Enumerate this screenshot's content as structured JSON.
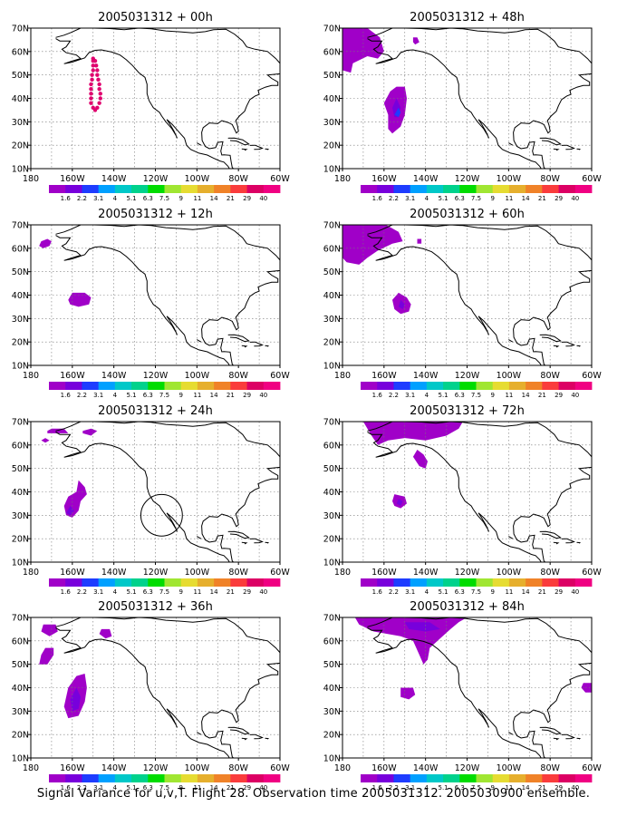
{
  "caption": "Signal Variance for u,v,T. Flight 28. Observation time 2005031312. 2005030900 ensemble.",
  "x_tick_labels": [
    "180",
    "160W",
    "140W",
    "120W",
    "100W",
    "80W",
    "60W"
  ],
  "y_tick_labels": [
    "10N",
    "20N",
    "30N",
    "40N",
    "50N",
    "60N",
    "70N"
  ],
  "colorbar": {
    "labels": [
      "1.6",
      "2.2",
      "3.1",
      "4",
      "5.1",
      "6.3",
      "7.5",
      "9",
      "11",
      "14",
      "21",
      "29",
      "40"
    ],
    "colors": [
      "#a000c8",
      "#7800dc",
      "#1e3cff",
      "#00a0ff",
      "#00c8c8",
      "#00d28c",
      "#00dc00",
      "#a0e632",
      "#e6dc32",
      "#e6af2d",
      "#f08228",
      "#fa3c3c",
      "#dc0064",
      "#f00082"
    ]
  },
  "chart_data": {
    "type": "map",
    "projection": "lat-lon",
    "lon_range": [
      -180,
      -60
    ],
    "lat_range": [
      10,
      70
    ],
    "grid": true,
    "fill_color": "#a000c8",
    "panels": [
      {
        "title": "2005031312 + 00h",
        "flight_track": [
          [
            -150,
            57
          ],
          [
            -149,
            56
          ],
          [
            -148.5,
            54
          ],
          [
            -148,
            52
          ],
          [
            -148,
            50
          ],
          [
            -147.5,
            48
          ],
          [
            -147,
            46
          ],
          [
            -147,
            44
          ],
          [
            -146.5,
            42
          ],
          [
            -146.5,
            40
          ],
          [
            -147,
            38
          ],
          [
            -148,
            36
          ],
          [
            -149,
            35
          ],
          [
            -150,
            36
          ],
          [
            -151,
            38
          ],
          [
            -151,
            40
          ],
          [
            -151,
            42
          ],
          [
            -151,
            44
          ],
          [
            -151,
            46
          ],
          [
            -150.5,
            48
          ],
          [
            -150.5,
            50
          ],
          [
            -150,
            52
          ],
          [
            -150,
            54
          ],
          [
            -150,
            56
          ]
        ],
        "regions": []
      },
      {
        "title": "2005031312 + 12h",
        "regions": [
          {
            "outline": [
              [
                -175,
                63
              ],
              [
                -172,
                64
              ],
              [
                -170,
                63
              ],
              [
                -171,
                61
              ],
              [
                -174,
                60
              ],
              [
                -176,
                61
              ]
            ],
            "value": 1.6
          },
          {
            "outline": [
              [
                -160,
                41
              ],
              [
                -154,
                41
              ],
              [
                -151,
                39
              ],
              [
                -152,
                36
              ],
              [
                -157,
                35
              ],
              [
                -161,
                36
              ],
              [
                -162,
                38
              ]
            ],
            "value": 1.6
          }
        ]
      },
      {
        "title": "2005031312 + 24h",
        "regions": [
          {
            "outline": [
              [
                -172,
                66
              ],
              [
                -170,
                67
              ],
              [
                -164,
                67
              ],
              [
                -162,
                65
              ],
              [
                -166,
                65
              ],
              [
                -172,
                65
              ]
            ],
            "value": 1.6
          },
          {
            "outline": [
              [
                -155,
                66
              ],
              [
                -151,
                67
              ],
              [
                -148,
                66
              ],
              [
                -151,
                64
              ],
              [
                -155,
                65
              ]
            ],
            "value": 1.6
          },
          {
            "outline": [
              [
                -173,
                63
              ],
              [
                -171,
                62
              ],
              [
                -173,
                61
              ],
              [
                -175,
                62
              ]
            ],
            "value": 1.6
          },
          {
            "outline": [
              [
                -157,
                45
              ],
              [
                -154,
                42
              ],
              [
                -153,
                39
              ],
              [
                -156,
                36
              ],
              [
                -157,
                32
              ],
              [
                -160,
                29
              ],
              [
                -163,
                30
              ],
              [
                -164,
                34
              ],
              [
                -162,
                38
              ],
              [
                -158,
                40
              ]
            ],
            "value": 1.6
          },
          {
            "outline": [
              [
                -161,
                34
              ],
              [
                -159,
                32
              ],
              [
                -161,
                30
              ],
              [
                -163,
                31
              ]
            ],
            "value": 2.2
          }
        ],
        "circle": {
          "center": [
            -117,
            30
          ],
          "radius_deg": 10
        }
      },
      {
        "title": "2005031312 + 36h",
        "regions": [
          {
            "outline": [
              [
                -174,
                67
              ],
              [
                -168,
                67
              ],
              [
                -167,
                64
              ],
              [
                -171,
                62
              ],
              [
                -175,
                64
              ]
            ],
            "value": 1.6
          },
          {
            "outline": [
              [
                -173,
                57
              ],
              [
                -169,
                57
              ],
              [
                -169,
                54
              ],
              [
                -172,
                50
              ],
              [
                -176,
                50
              ],
              [
                -175,
                54
              ]
            ],
            "value": 1.6
          },
          {
            "outline": [
              [
                -146,
                65
              ],
              [
                -142,
                65
              ],
              [
                -141,
                62
              ],
              [
                -144,
                61
              ],
              [
                -147,
                63
              ]
            ],
            "value": 1.6
          },
          {
            "outline": [
              [
                -154,
                46
              ],
              [
                -153,
                40
              ],
              [
                -154,
                34
              ],
              [
                -157,
                28
              ],
              [
                -162,
                27
              ],
              [
                -164,
                32
              ],
              [
                -162,
                40
              ],
              [
                -158,
                45
              ]
            ],
            "value": 1.6
          },
          {
            "outline": [
              [
                -158,
                40
              ],
              [
                -156,
                36
              ],
              [
                -157,
                31
              ],
              [
                -160,
                30
              ],
              [
                -161,
                35
              ]
            ],
            "value": 2.2
          }
        ]
      },
      {
        "title": "2005031312 + 48h",
        "regions": [
          {
            "outline": [
              [
                -180,
                70
              ],
              [
                -168,
                70
              ],
              [
                -162,
                66
              ],
              [
                -160,
                60
              ],
              [
                -163,
                57
              ],
              [
                -168,
                58
              ],
              [
                -175,
                55
              ],
              [
                -176,
                51
              ],
              [
                -180,
                52
              ]
            ],
            "value": 1.6
          },
          {
            "outline": [
              [
                -146,
                66
              ],
              [
                -144,
                66
              ],
              [
                -143,
                64
              ],
              [
                -145,
                63
              ],
              [
                -146,
                64
              ]
            ],
            "value": 1.6
          },
          {
            "outline": [
              [
                -150,
                45
              ],
              [
                -149,
                40
              ],
              [
                -150,
                33
              ],
              [
                -152,
                28
              ],
              [
                -156,
                25
              ],
              [
                -158,
                27
              ],
              [
                -158,
                33
              ],
              [
                -160,
                38
              ],
              [
                -157,
                43
              ],
              [
                -154,
                45
              ]
            ],
            "value": 1.6
          },
          {
            "outline": [
              [
                -154,
                40
              ],
              [
                -152,
                36
              ],
              [
                -153,
                32
              ],
              [
                -155,
                32
              ],
              [
                -156,
                36
              ]
            ],
            "value": 2.2
          },
          {
            "outline": [
              [
                -153,
                36
              ],
              [
                -152,
                34
              ],
              [
                -153,
                32
              ],
              [
                -155,
                33
              ]
            ],
            "value": 3.1
          }
        ]
      },
      {
        "title": "2005031312 + 60h",
        "regions": [
          {
            "outline": [
              [
                -180,
                70
              ],
              [
                -159,
                70
              ],
              [
                -153,
                67
              ],
              [
                -151,
                63
              ],
              [
                -156,
                62
              ],
              [
                -163,
                59
              ],
              [
                -168,
                56
              ],
              [
                -172,
                53
              ],
              [
                -178,
                54
              ],
              [
                -180,
                56
              ]
            ],
            "value": 1.6
          },
          {
            "outline": [
              [
                -144,
                64
              ],
              [
                -142,
                64
              ],
              [
                -142,
                62
              ],
              [
                -144,
                62
              ]
            ],
            "value": 1.6
          },
          {
            "outline": [
              [
                -153,
                41
              ],
              [
                -149,
                39
              ],
              [
                -147,
                36
              ],
              [
                -148,
                33
              ],
              [
                -152,
                32
              ],
              [
                -155,
                34
              ],
              [
                -156,
                38
              ]
            ],
            "value": 1.6
          },
          {
            "outline": [
              [
                -152,
                38
              ],
              [
                -150,
                36
              ],
              [
                -151,
                34
              ],
              [
                -153,
                35
              ]
            ],
            "value": 2.2
          }
        ]
      },
      {
        "title": "2005031312 + 72h",
        "regions": [
          {
            "outline": [
              [
                -170,
                70
              ],
              [
                -122,
                70
              ],
              [
                -124,
                67
              ],
              [
                -130,
                64
              ],
              [
                -140,
                62
              ],
              [
                -150,
                63
              ],
              [
                -158,
                62
              ],
              [
                -163,
                60
              ],
              [
                -166,
                64
              ]
            ],
            "value": 1.6
          },
          {
            "outline": [
              [
                -144,
                58
              ],
              [
                -141,
                56
              ],
              [
                -139,
                53
              ],
              [
                -140,
                50
              ],
              [
                -143,
                51
              ],
              [
                -146,
                55
              ]
            ],
            "value": 1.6
          },
          {
            "outline": [
              [
                -155,
                39
              ],
              [
                -150,
                38
              ],
              [
                -149,
                35
              ],
              [
                -152,
                33
              ],
              [
                -155,
                34
              ],
              [
                -156,
                36
              ]
            ],
            "value": 1.6
          },
          {
            "outline": [
              [
                -153,
                37
              ],
              [
                -151,
                36
              ],
              [
                -152,
                34
              ],
              [
                -154,
                35
              ]
            ],
            "value": 2.2
          }
        ]
      },
      {
        "title": "2005031312 + 84h",
        "regions": [
          {
            "outline": [
              [
                -174,
                70
              ],
              [
                -120,
                70
              ],
              [
                -124,
                68
              ],
              [
                -128,
                65
              ],
              [
                -133,
                61
              ],
              [
                -138,
                57
              ],
              [
                -139,
                52
              ],
              [
                -141,
                50
              ],
              [
                -143,
                54
              ],
              [
                -146,
                60
              ],
              [
                -152,
                62
              ],
              [
                -165,
                64
              ],
              [
                -172,
                67
              ]
            ],
            "value": 1.6
          },
          {
            "outline": [
              [
                -150,
                68
              ],
              [
                -138,
                68
              ],
              [
                -133,
                65
              ],
              [
                -140,
                64
              ],
              [
                -148,
                65
              ]
            ],
            "value": 2.2
          },
          {
            "outline": [
              [
                -152,
                40
              ],
              [
                -146,
                40
              ],
              [
                -145,
                37
              ],
              [
                -148,
                35
              ],
              [
                -152,
                36
              ]
            ],
            "value": 1.6
          },
          {
            "outline": [
              [
                -64,
                42
              ],
              [
                -60,
                42
              ],
              [
                -60,
                38
              ],
              [
                -63,
                38
              ],
              [
                -65,
                40
              ]
            ],
            "value": 1.6
          }
        ]
      }
    ]
  }
}
